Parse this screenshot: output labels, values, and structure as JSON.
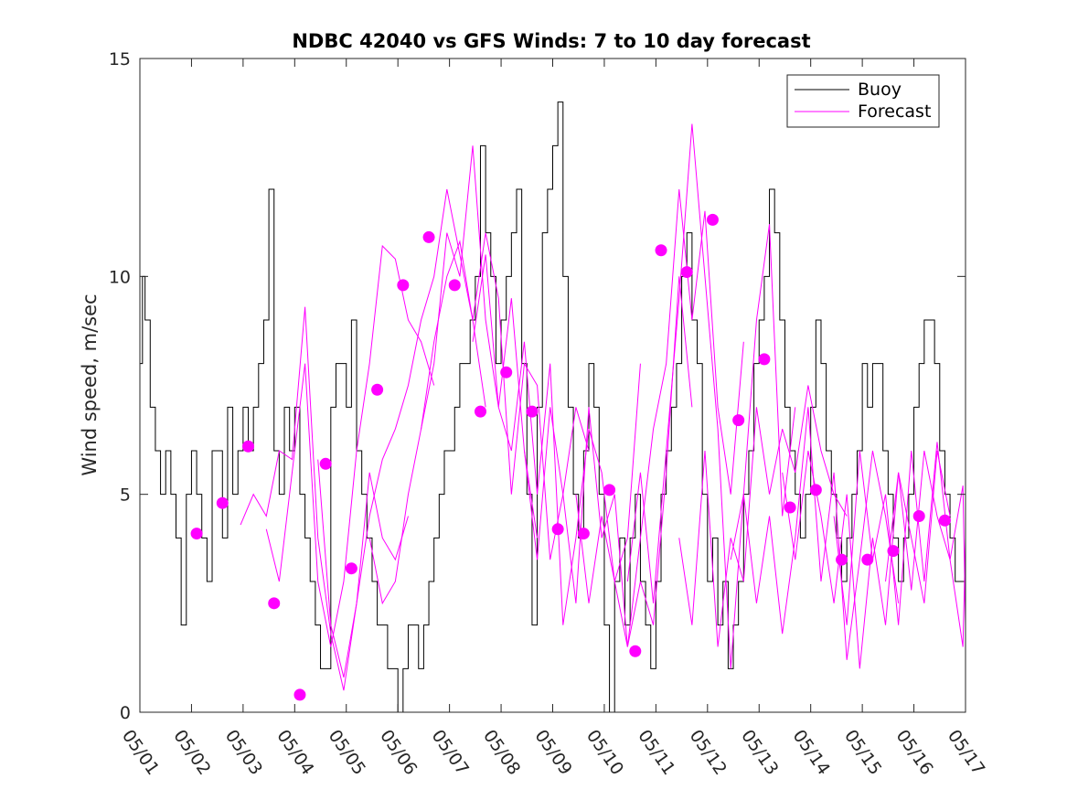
{
  "chart_data": {
    "type": "line",
    "title": "NDBC 42040 vs GFS Winds: 7 to 10 day forecast",
    "xlabel": "",
    "ylabel": "Wind speed, m/sec",
    "xlim": [
      0,
      16
    ],
    "ylim": [
      0,
      15
    ],
    "x_ticks": [
      0,
      1,
      2,
      3,
      4,
      5,
      6,
      7,
      8,
      9,
      10,
      11,
      12,
      13,
      14,
      15,
      16
    ],
    "x_tick_labels": [
      "05/01",
      "05/02",
      "05/03",
      "05/04",
      "05/05",
      "05/06",
      "05/07",
      "05/08",
      "05/09",
      "05/10",
      "05/11",
      "05/12",
      "05/13",
      "05/14",
      "05/15",
      "05/16",
      "05/17"
    ],
    "y_ticks": [
      0,
      5,
      10,
      15
    ],
    "y_tick_labels": [
      "0",
      "5",
      "10",
      "15"
    ],
    "x_unit": "days from 05/01",
    "legend": {
      "placement": "top-right",
      "entries": [
        {
          "label": "Buoy",
          "color": "#000000"
        },
        {
          "label": "Forecast",
          "color": "#ff00ff"
        }
      ]
    },
    "colors": {
      "buoy": "#000000",
      "forecast": "#ff00ff"
    },
    "series": [
      {
        "name": "Buoy",
        "style": "step",
        "x": [
          0.0,
          0.05,
          0.1,
          0.2,
          0.3,
          0.4,
          0.5,
          0.6,
          0.7,
          0.8,
          0.9,
          1.0,
          1.1,
          1.2,
          1.3,
          1.4,
          1.5,
          1.6,
          1.7,
          1.8,
          1.9,
          2.0,
          2.1,
          2.2,
          2.3,
          2.4,
          2.5,
          2.6,
          2.7,
          2.8,
          2.9,
          3.0,
          3.1,
          3.2,
          3.3,
          3.4,
          3.5,
          3.6,
          3.7,
          3.8,
          3.9,
          4.0,
          4.1,
          4.2,
          4.3,
          4.4,
          4.5,
          4.6,
          4.7,
          4.8,
          4.9,
          5.0,
          5.1,
          5.2,
          5.3,
          5.4,
          5.5,
          5.6,
          5.7,
          5.8,
          5.9,
          6.0,
          6.1,
          6.2,
          6.3,
          6.4,
          6.5,
          6.6,
          6.7,
          6.8,
          6.9,
          7.0,
          7.1,
          7.2,
          7.3,
          7.4,
          7.5,
          7.6,
          7.7,
          7.8,
          7.9,
          8.0,
          8.1,
          8.2,
          8.3,
          8.4,
          8.5,
          8.6,
          8.7,
          8.8,
          8.9,
          9.0,
          9.1,
          9.2,
          9.3,
          9.4,
          9.5,
          9.6,
          9.7,
          9.8,
          9.9,
          10.0,
          10.1,
          10.2,
          10.3,
          10.4,
          10.5,
          10.6,
          10.7,
          10.8,
          10.9,
          11.0,
          11.1,
          11.2,
          11.3,
          11.4,
          11.5,
          11.6,
          11.7,
          11.8,
          11.9,
          12.0,
          12.1,
          12.2,
          12.3,
          12.4,
          12.5,
          12.6,
          12.7,
          12.8,
          12.9,
          13.0,
          13.1,
          13.2,
          13.3,
          13.4,
          13.5,
          13.6,
          13.7,
          13.8,
          13.9,
          14.0,
          14.1,
          14.2,
          14.3,
          14.4,
          14.5,
          14.6,
          14.7,
          14.8,
          14.9,
          15.0,
          15.1,
          15.2,
          15.3,
          15.4,
          15.5,
          15.6,
          15.7,
          15.8,
          15.9,
          16.0
        ],
        "y": [
          8,
          10,
          9,
          7,
          6,
          5,
          6,
          5,
          4,
          2,
          5,
          6,
          5,
          4,
          3,
          6,
          6,
          4,
          7,
          5,
          6,
          7,
          6,
          7,
          8,
          9,
          12,
          6,
          5,
          7,
          6,
          7,
          5,
          4,
          3,
          2,
          1,
          1,
          7,
          8,
          8,
          7,
          9,
          6,
          5,
          4,
          3,
          2,
          2,
          1,
          1,
          0,
          1,
          2,
          2,
          1,
          2,
          3,
          4,
          5,
          6,
          6,
          7,
          8,
          8,
          9,
          10,
          13,
          11,
          10,
          8,
          9,
          10,
          11,
          12,
          8,
          5,
          2,
          7,
          11,
          12,
          13,
          14,
          10,
          7,
          5,
          4,
          6,
          8,
          7,
          5,
          2,
          0,
          3,
          4,
          2,
          4,
          5,
          3,
          2,
          1,
          3,
          5,
          6,
          7,
          8,
          10,
          11,
          9,
          8,
          5,
          3,
          4,
          2,
          3,
          1,
          2,
          3,
          5,
          6,
          8,
          9,
          10,
          12,
          11,
          9,
          7,
          6,
          5,
          4,
          5,
          7,
          9,
          8,
          6,
          5,
          4,
          3,
          4,
          5,
          6,
          8,
          7,
          8,
          8,
          6,
          5,
          4,
          3,
          4,
          5,
          7,
          8,
          9,
          9,
          8,
          6,
          5,
          4,
          3,
          3,
          4
        ]
      },
      {
        "name": "Forecast",
        "style": "line",
        "x": [
          1.95,
          2.2,
          2.45,
          2.7,
          2.95,
          3.2,
          3.45,
          3.7,
          3.95,
          4.2,
          4.45,
          4.7,
          4.95,
          5.2
        ],
        "y": [
          4.3,
          5.0,
          4.5,
          6.0,
          5.8,
          9.3,
          4.0,
          1.8,
          0.5,
          2.5,
          5.5,
          4.0,
          3.5,
          4.5
        ]
      },
      {
        "name": "Forecast",
        "style": "line",
        "x": [
          2.45,
          2.7,
          2.95,
          3.2,
          3.45,
          3.7,
          3.95,
          4.2,
          4.45,
          4.7,
          4.95,
          5.2,
          5.45,
          5.7
        ],
        "y": [
          4.2,
          3.0,
          5.5,
          8.0,
          3.0,
          1.5,
          3.0,
          6.0,
          8.0,
          10.7,
          10.4,
          9.0,
          8.5,
          7.5
        ]
      },
      {
        "name": "Forecast",
        "style": "line",
        "x": [
          3.45,
          3.7,
          3.95,
          4.2,
          4.45,
          4.7,
          4.95,
          5.2,
          5.45,
          5.7,
          5.95,
          6.2,
          6.45,
          6.7
        ],
        "y": [
          5.8,
          2.0,
          0.8,
          2.5,
          4.5,
          5.8,
          6.5,
          7.5,
          9.0,
          10.0,
          12.0,
          10.5,
          9.0,
          7.0
        ]
      },
      {
        "name": "Forecast",
        "style": "line",
        "x": [
          4.45,
          4.7,
          4.95,
          5.2,
          5.45,
          5.7,
          5.95,
          6.2,
          6.45,
          6.7,
          6.95,
          7.2,
          7.45,
          7.7
        ],
        "y": [
          4.0,
          2.5,
          3.0,
          5.0,
          6.5,
          8.0,
          11.0,
          10.0,
          13.0,
          9.0,
          7.0,
          9.5,
          6.0,
          4.0
        ]
      },
      {
        "name": "Forecast",
        "style": "line",
        "x": [
          5.45,
          5.7,
          5.95,
          6.2,
          6.45,
          6.7,
          6.95,
          7.2,
          7.45,
          7.7,
          7.95,
          8.2,
          8.45,
          8.7
        ],
        "y": [
          6.5,
          8.5,
          10.0,
          10.8,
          9.0,
          11.0,
          9.5,
          5.0,
          8.0,
          7.5,
          3.5,
          5.0,
          7.0,
          6.0
        ]
      },
      {
        "name": "Forecast",
        "style": "line",
        "x": [
          6.45,
          6.7,
          6.95,
          7.2,
          7.45,
          7.7,
          7.95,
          8.2,
          8.45,
          8.7,
          8.95,
          9.2,
          9.45,
          9.7
        ],
        "y": [
          8.5,
          10.5,
          7.0,
          6.0,
          8.5,
          5.0,
          8.0,
          2.0,
          4.0,
          6.5,
          5.5,
          3.0,
          4.0,
          8.0
        ]
      },
      {
        "name": "Forecast",
        "style": "line",
        "x": [
          7.45,
          7.7,
          7.95,
          8.2,
          8.45,
          8.7,
          8.95,
          9.2,
          9.45,
          9.7,
          9.95,
          10.2,
          10.45,
          10.7
        ],
        "y": [
          6.0,
          3.5,
          7.0,
          5.0,
          2.5,
          7.0,
          4.0,
          5.0,
          1.5,
          3.0,
          2.0,
          5.5,
          10.0,
          7.0
        ]
      },
      {
        "name": "Forecast",
        "style": "line",
        "x": [
          8.45,
          8.7,
          8.95,
          9.2,
          9.45,
          9.7,
          9.95,
          10.2,
          10.45,
          10.7,
          10.95,
          11.2,
          11.45,
          11.7
        ],
        "y": [
          5.0,
          2.5,
          4.5,
          3.0,
          1.5,
          4.0,
          6.5,
          8.0,
          12.0,
          9.0,
          11.5,
          7.0,
          5.0,
          8.5
        ]
      },
      {
        "name": "Forecast",
        "style": "line",
        "x": [
          9.45,
          9.7,
          9.95,
          10.2,
          10.45,
          10.7,
          10.95,
          11.2,
          11.45,
          11.7,
          11.95,
          12.2,
          12.45,
          12.7
        ],
        "y": [
          3.0,
          5.5,
          2.5,
          6.0,
          9.5,
          13.5,
          10.0,
          6.5,
          1.0,
          5.0,
          9.0,
          11.2,
          4.5,
          7.0
        ]
      },
      {
        "name": "Forecast",
        "style": "line",
        "x": [
          10.45,
          10.7,
          10.95,
          11.2,
          11.45,
          11.7,
          11.95,
          12.2,
          12.45,
          12.7,
          12.95,
          13.2,
          13.45,
          13.7
        ],
        "y": [
          4.0,
          2.0,
          6.0,
          1.5,
          4.0,
          3.0,
          7.0,
          5.0,
          6.5,
          5.5,
          7.5,
          6.0,
          5.0,
          4.5
        ]
      },
      {
        "name": "Forecast",
        "style": "line",
        "x": [
          11.45,
          11.7,
          11.95,
          12.2,
          12.45,
          12.7,
          12.95,
          13.2,
          13.45,
          13.7,
          13.95,
          14.2,
          14.45,
          14.7
        ],
        "y": [
          3.5,
          5.0,
          2.5,
          4.5,
          1.8,
          4.0,
          7.0,
          3.0,
          5.5,
          1.2,
          3.5,
          6.0,
          4.5,
          2.5
        ]
      },
      {
        "name": "Forecast",
        "style": "line",
        "x": [
          12.45,
          12.7,
          12.95,
          13.2,
          13.45,
          13.7,
          13.95,
          14.2,
          14.45,
          14.7,
          14.95,
          15.2,
          15.45,
          15.7
        ],
        "y": [
          5.5,
          3.5,
          6.0,
          4.5,
          2.5,
          5.0,
          1.0,
          4.0,
          2.0,
          5.5,
          4.0,
          2.5,
          6.0,
          4.5
        ]
      },
      {
        "name": "Forecast",
        "style": "line",
        "x": [
          13.45,
          13.7,
          13.95,
          14.2,
          14.45,
          14.7,
          14.95,
          15.2,
          15.45,
          15.7,
          15.95,
          16.0
        ],
        "y": [
          4.5,
          2.0,
          6.0,
          3.5,
          5.0,
          2.0,
          6.0,
          3.0,
          6.2,
          3.5,
          1.5,
          4.0
        ]
      },
      {
        "name": "Forecast",
        "style": "line",
        "x": [
          14.45,
          14.7,
          14.95,
          15.2,
          15.45,
          15.7,
          15.95,
          16.0
        ],
        "y": [
          3.0,
          5.5,
          2.8,
          6.0,
          4.5,
          3.5,
          5.2,
          2.0
        ]
      },
      {
        "name": "Forecast",
        "style": "markers",
        "x": [
          1.1,
          1.6,
          2.1,
          2.6,
          3.1,
          3.6,
          4.1,
          4.6,
          5.1,
          5.6,
          6.1,
          6.6,
          7.1,
          7.6,
          8.1,
          8.6,
          9.1,
          9.6,
          10.1,
          10.6,
          11.1,
          11.6,
          12.1,
          12.6,
          13.1,
          13.6,
          14.1,
          14.6,
          15.1,
          15.6
        ],
        "y": [
          4.1,
          4.8,
          6.1,
          2.5,
          0.4,
          5.7,
          3.3,
          7.4,
          9.8,
          10.9,
          9.8,
          6.9,
          7.8,
          6.9,
          4.2,
          4.1,
          5.1,
          1.4,
          10.6,
          10.1,
          11.3,
          6.7,
          8.1,
          4.7,
          5.1,
          3.5,
          3.5,
          3.7,
          4.5,
          4.4
        ]
      }
    ]
  }
}
